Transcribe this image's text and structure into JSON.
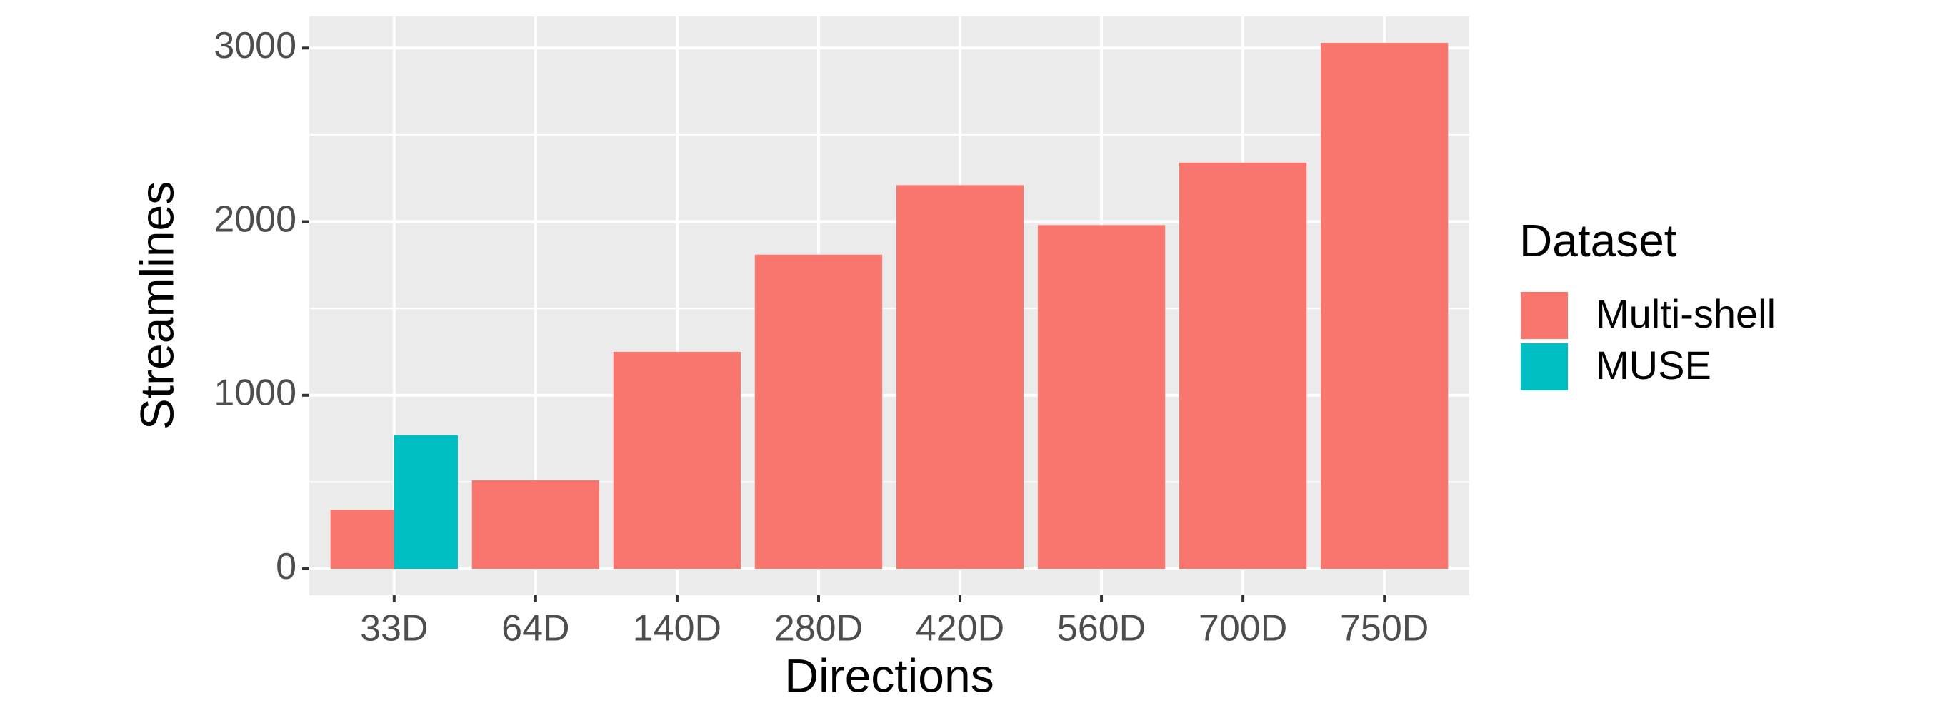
{
  "chart_data": {
    "type": "bar",
    "x_label": "Directions",
    "y_label": "Streamlines",
    "legend_title": "Dataset",
    "legend_position": "right",
    "categories": [
      "33D",
      "64D",
      "140D",
      "280D",
      "420D",
      "560D",
      "700D",
      "750D"
    ],
    "series": [
      {
        "name": "Multi-shell",
        "color": "#F8766D",
        "values": [
          340,
          510,
          1250,
          1810,
          2210,
          1980,
          2340,
          3030
        ]
      },
      {
        "name": "MUSE",
        "color": "#00BFC4",
        "values": [
          770,
          null,
          null,
          null,
          null,
          null,
          null,
          null
        ]
      }
    ],
    "ylim": [
      -152,
      3182
    ],
    "yticks": [
      0,
      1000,
      2000,
      3000
    ],
    "grid": true
  }
}
